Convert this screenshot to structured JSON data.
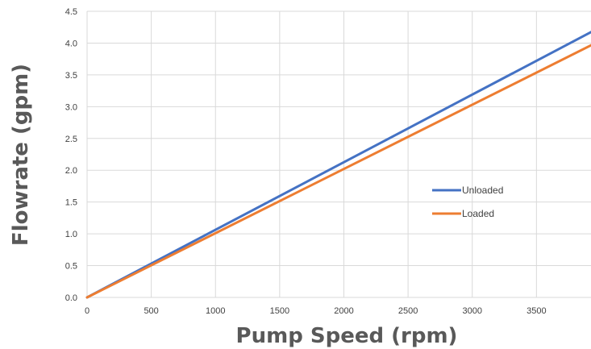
{
  "chart_data": {
    "type": "line",
    "xlabel": "Pump Speed (rpm)",
    "ylabel": "Flowrate (gpm)",
    "xlim": [
      0,
      3950
    ],
    "ylim": [
      0,
      4.5
    ],
    "x_ticks": [
      "0",
      "500",
      "1000",
      "1500",
      "2000",
      "2500",
      "3000",
      "3500"
    ],
    "x_tick_values": [
      0,
      500,
      1000,
      1500,
      2000,
      2500,
      3000,
      3500
    ],
    "y_ticks": [
      "0.0",
      "0.5",
      "1.0",
      "1.5",
      "2.0",
      "2.5",
      "3.0",
      "3.5",
      "4.0",
      "4.5"
    ],
    "y_tick_values": [
      0,
      0.5,
      1.0,
      1.5,
      2.0,
      2.5,
      3.0,
      3.5,
      4.0,
      4.5
    ],
    "grid": true,
    "legend_position": "center-right",
    "series": [
      {
        "name": "Unloaded",
        "color": "#4472c4",
        "x": [
          0,
          3950
        ],
        "y": [
          0,
          4.2
        ]
      },
      {
        "name": "Loaded",
        "color": "#ed7d31",
        "x": [
          0,
          3950
        ],
        "y": [
          0,
          3.99
        ]
      }
    ]
  }
}
